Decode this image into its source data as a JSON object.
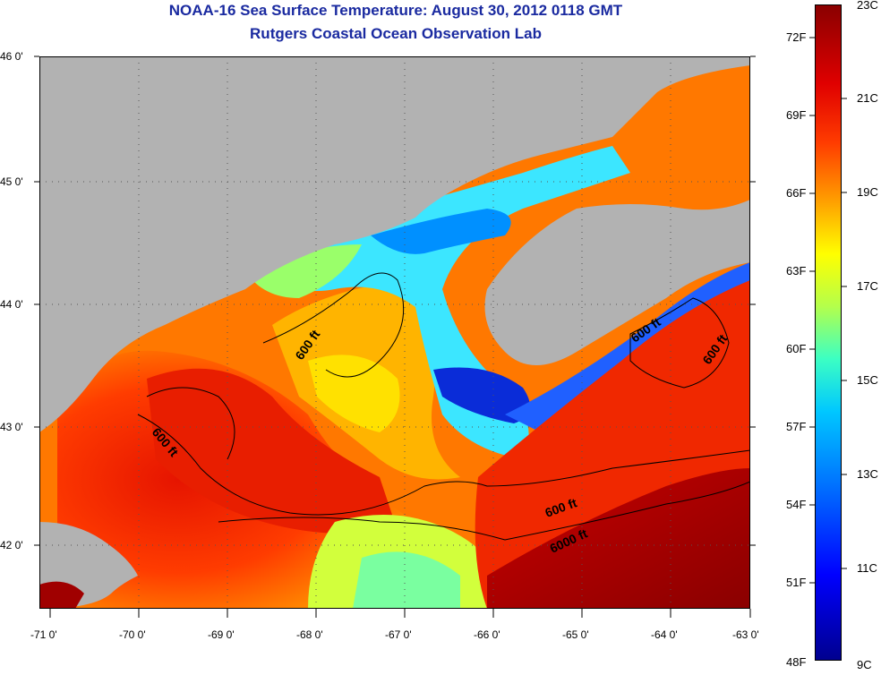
{
  "title": {
    "line1": "NOAA-16 Sea Surface Temperature:  August 30, 2012 0118 GMT",
    "line2": "Rutgers Coastal Ocean Observation Lab"
  },
  "map": {
    "lat_labels": [
      "46 0'",
      "45 0'",
      "44 0'",
      "43 0'",
      "42 0'"
    ],
    "lon_labels": [
      "-71 0'",
      "-70 0'",
      "-69 0'",
      "-68 0'",
      "-67 0'",
      "-66 0'",
      "-65 0'",
      "-64 0'",
      "-63 0'"
    ],
    "contour_labels": [
      "600 ft",
      "600 ft",
      "600 ft",
      "600 ft",
      "600 ft",
      "6000 ft"
    ],
    "land_color": "#b2b2b2"
  },
  "colorbar": {
    "fahrenheit": [
      "72F",
      "69F",
      "66F",
      "63F",
      "60F",
      "57F",
      "54F",
      "51F",
      "48F"
    ],
    "celsius": [
      "23C",
      "21C",
      "19C",
      "17C",
      "15C",
      "13C",
      "11C",
      "9C"
    ]
  }
}
